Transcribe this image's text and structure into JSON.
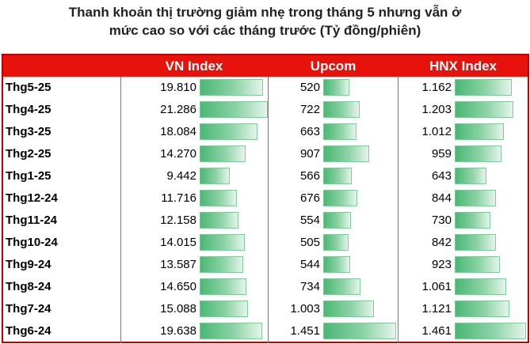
{
  "title_lines": [
    "Thanh khoản thị trường giảm nhẹ trong tháng 5 nhưng vẫn ở",
    "mức cao so với các tháng trước (Tỷ đồng/phiên)"
  ],
  "colors": {
    "header_bg": "#e8120c",
    "border": "#c00000",
    "bar": "#49b873"
  },
  "chart_data": {
    "type": "table",
    "title": "Thanh khoản thị trường giảm nhẹ trong tháng 5 nhưng vẫn ở mức cao so với các tháng trước (Tỷ đồng/phiên)",
    "columns": [
      "VN Index",
      "Upcom",
      "HNX Index"
    ],
    "categories": [
      "Thg5-25",
      "Thg4-25",
      "Thg3-25",
      "Thg2-25",
      "Thg1-25",
      "Thg12-24",
      "Thg11-24",
      "Thg10-24",
      "Thg9-24",
      "Thg8-24",
      "Thg7-24",
      "Thg6-24"
    ],
    "series": [
      {
        "name": "VN Index",
        "values": [
          19810,
          21286,
          18084,
          14270,
          9442,
          11716,
          12158,
          14015,
          13587,
          14650,
          15088,
          19638
        ],
        "labels": [
          "19.810",
          "21.286",
          "18.084",
          "14.270",
          "9.442",
          "11.716",
          "12.158",
          "14.015",
          "13.587",
          "14.650",
          "15.088",
          "19.638"
        ]
      },
      {
        "name": "Upcom",
        "values": [
          520,
          722,
          663,
          907,
          566,
          676,
          554,
          505,
          544,
          734,
          1003,
          1451
        ],
        "labels": [
          "520",
          "722",
          "663",
          "907",
          "566",
          "676",
          "554",
          "505",
          "544",
          "734",
          "1.003",
          "1.451"
        ]
      },
      {
        "name": "HNX Index",
        "values": [
          1162,
          1203,
          1012,
          959,
          643,
          844,
          730,
          842,
          923,
          1061,
          1121,
          1461
        ],
        "labels": [
          "1.162",
          "1.203",
          "1.012",
          "959",
          "643",
          "844",
          "730",
          "842",
          "923",
          "1.061",
          "1.121",
          "1.461"
        ]
      }
    ]
  }
}
